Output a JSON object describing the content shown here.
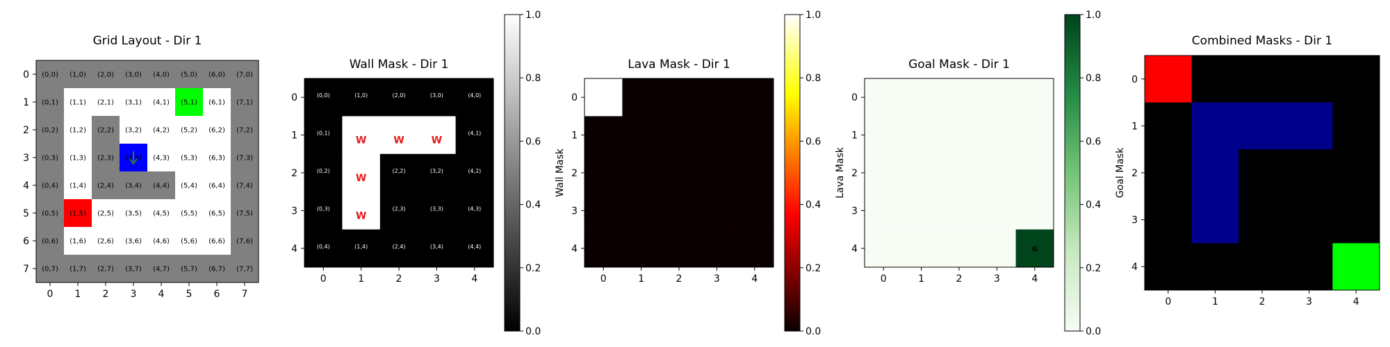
{
  "colors": {
    "wall_gray": "#808080",
    "floor_white": "#ffffff",
    "lava_red": "#ff0000",
    "goal_green": "#00ff00",
    "agent_blue": "#0000ff",
    "agent_arrow": "#2e7d32",
    "wall_letter": "#e41a1c",
    "combined_wall": "#00008b",
    "black": "#000000"
  },
  "chart_data": [
    {
      "type": "heatmap",
      "title": "Grid Layout - Dir 1",
      "xlim": [
        -0.5,
        7.5
      ],
      "ylim": [
        7.5,
        -0.5
      ],
      "xticks": [
        "0",
        "1",
        "2",
        "3",
        "4",
        "5",
        "6",
        "7"
      ],
      "yticks": [
        "0",
        "1",
        "2",
        "3",
        "4",
        "5",
        "6",
        "7"
      ],
      "grid": false,
      "cells": [
        [
          "gray",
          "gray",
          "gray",
          "gray",
          "gray",
          "gray",
          "gray",
          "gray"
        ],
        [
          "gray",
          "white",
          "white",
          "white",
          "white",
          "green",
          "white",
          "gray"
        ],
        [
          "gray",
          "white",
          "gray",
          "white",
          "white",
          "white",
          "white",
          "gray"
        ],
        [
          "gray",
          "white",
          "gray",
          "blue",
          "white",
          "white",
          "white",
          "gray"
        ],
        [
          "gray",
          "white",
          "gray",
          "gray",
          "gray",
          "white",
          "white",
          "gray"
        ],
        [
          "gray",
          "red",
          "white",
          "white",
          "white",
          "white",
          "white",
          "gray"
        ],
        [
          "gray",
          "white",
          "white",
          "white",
          "white",
          "white",
          "white",
          "gray"
        ],
        [
          "gray",
          "gray",
          "gray",
          "gray",
          "gray",
          "gray",
          "gray",
          "gray"
        ]
      ],
      "cell_labels": [
        [
          "(0,0)",
          "(1,0)",
          "(2,0)",
          "(3,0)",
          "(4,0)",
          "(5,0)",
          "(6,0)",
          "(7,0)"
        ],
        [
          "(0,1)",
          "(1,1)",
          "(2,1)",
          "(3,1)",
          "(4,1)",
          "(5,1)",
          "(6,1)",
          "(7,1)"
        ],
        [
          "(0,2)",
          "(1,2)",
          "(2,2)",
          "(3,2)",
          "(4,2)",
          "(5,2)",
          "(6,2)",
          "(7,2)"
        ],
        [
          "(0,3)",
          "(1,3)",
          "(2,3)",
          "(3,3)",
          "(4,3)",
          "(5,3)",
          "(6,3)",
          "(7,3)"
        ],
        [
          "(0,4)",
          "(1,4)",
          "(2,4)",
          "(3,4)",
          "(4,4)",
          "(5,4)",
          "(6,4)",
          "(7,4)"
        ],
        [
          "(0,5)",
          "(1,5)",
          "(2,5)",
          "(3,5)",
          "(4,5)",
          "(5,5)",
          "(6,5)",
          "(7,5)"
        ],
        [
          "(0,6)",
          "(1,6)",
          "(2,6)",
          "(3,6)",
          "(4,6)",
          "(5,6)",
          "(6,6)",
          "(7,6)"
        ],
        [
          "(0,7)",
          "(1,7)",
          "(2,7)",
          "(3,7)",
          "(4,7)",
          "(5,7)",
          "(6,7)",
          "(7,7)"
        ]
      ],
      "agent": {
        "x": 3,
        "y": 3,
        "direction": 1,
        "marker": "arrow-down"
      }
    },
    {
      "type": "heatmap",
      "title": "Wall Mask - Dir 1",
      "colormap": "gray",
      "colorbar_label": "Wall Mask",
      "clim": [
        0,
        1
      ],
      "colorbar_ticks": [
        "0.0",
        "0.2",
        "0.4",
        "0.6",
        "0.8",
        "1.0"
      ],
      "xticks": [
        "0",
        "1",
        "2",
        "3",
        "4"
      ],
      "yticks": [
        "0",
        "1",
        "2",
        "3",
        "4"
      ],
      "values": [
        [
          0,
          0,
          0,
          0,
          0
        ],
        [
          0,
          1,
          1,
          1,
          0
        ],
        [
          0,
          1,
          0,
          0,
          0
        ],
        [
          0,
          1,
          0,
          0,
          0
        ],
        [
          0,
          0,
          0,
          0,
          0
        ]
      ],
      "cell_labels": [
        [
          "(0,0)",
          "(1,0)",
          "(2,0)",
          "(3,0)",
          "(4,0)"
        ],
        [
          "(0,1)",
          "W",
          "W",
          "W",
          "(4,1)"
        ],
        [
          "(0,2)",
          "W",
          "(2,2)",
          "(3,2)",
          "(4,2)"
        ],
        [
          "(0,3)",
          "W",
          "(2,3)",
          "(3,3)",
          "(4,3)"
        ],
        [
          "(0,4)",
          "(1,4)",
          "(2,4)",
          "(3,4)",
          "(4,4)"
        ]
      ]
    },
    {
      "type": "heatmap",
      "title": "Lava Mask - Dir 1",
      "colormap": "hot",
      "colorbar_label": "Lava Mask",
      "clim": [
        0,
        1
      ],
      "colorbar_ticks": [
        "0.0",
        "0.2",
        "0.4",
        "0.6",
        "0.8",
        "1.0"
      ],
      "xticks": [
        "0",
        "1",
        "2",
        "3",
        "4"
      ],
      "yticks": [
        "0",
        "1",
        "2",
        "3",
        "4"
      ],
      "values": [
        [
          1,
          0,
          0,
          0,
          0
        ],
        [
          0,
          0,
          0,
          0,
          0
        ],
        [
          0,
          0,
          0,
          0,
          0
        ],
        [
          0,
          0,
          0,
          0,
          0
        ],
        [
          0,
          0,
          0,
          0,
          0
        ]
      ]
    },
    {
      "type": "heatmap",
      "title": "Goal Mask - Dir 1",
      "colormap": "greens",
      "colorbar_label": "Goal Mask",
      "clim": [
        0,
        1
      ],
      "colorbar_ticks": [
        "0.0",
        "0.2",
        "0.4",
        "0.6",
        "0.8",
        "1.0"
      ],
      "xticks": [
        "0",
        "1",
        "2",
        "3",
        "4"
      ],
      "yticks": [
        "0",
        "1",
        "2",
        "3",
        "4"
      ],
      "values": [
        [
          0,
          0,
          0,
          0,
          0
        ],
        [
          0,
          0,
          0,
          0,
          0
        ],
        [
          0,
          0,
          0,
          0,
          0
        ],
        [
          0,
          0,
          0,
          0,
          0
        ],
        [
          0,
          0,
          0,
          0,
          1
        ]
      ],
      "goal_label": {
        "x": 4,
        "y": 4,
        "text": "G"
      }
    },
    {
      "type": "heatmap",
      "title": "Combined Masks - Dir 1",
      "xticks": [
        "0",
        "1",
        "2",
        "3",
        "4"
      ],
      "yticks": [
        "0",
        "1",
        "2",
        "3",
        "4"
      ],
      "cells": [
        [
          "red",
          "black",
          "black",
          "black",
          "black"
        ],
        [
          "black",
          "navy",
          "navy",
          "navy",
          "black"
        ],
        [
          "black",
          "navy",
          "black",
          "black",
          "black"
        ],
        [
          "black",
          "navy",
          "black",
          "black",
          "black"
        ],
        [
          "black",
          "black",
          "black",
          "black",
          "green"
        ]
      ]
    }
  ]
}
